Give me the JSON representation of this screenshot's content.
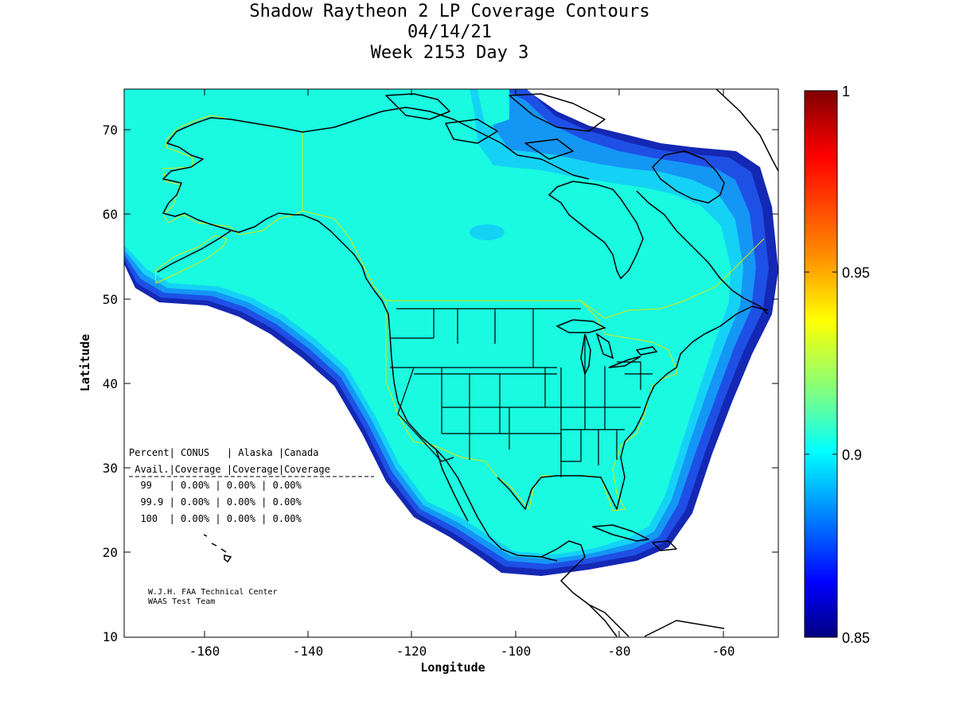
{
  "title": {
    "line1": "Shadow Raytheon 2 LP Coverage Contours",
    "line2": "04/14/21",
    "line3": "Week 2153 Day 3"
  },
  "axes": {
    "xlabel": "Longitude",
    "ylabel": "Latitude",
    "xticks": [
      "-160",
      "-140",
      "-120",
      "-100",
      "-80",
      "-60"
    ],
    "yticks": [
      "70",
      "60",
      "50",
      "40",
      "30",
      "20",
      "10"
    ]
  },
  "colorbar": {
    "labels": [
      "1",
      "0.95",
      "0.9",
      "0.85"
    ],
    "colors": {
      "top": "#800000",
      "red": "#ff0000",
      "orange": "#ff8c00",
      "yellow": "#ffff00",
      "green": "#80ff80",
      "cyan": "#00ffff",
      "blue": "#0080ff",
      "darkblue": "#0000ff",
      "bottom": "#000080"
    }
  },
  "coverage_table": {
    "header1": "Percent| CONUS   | Alaska |Canada",
    "header2": " Avail.|Coverage |Coverage|Coverage",
    "rows": [
      "  99   | 0.00% | 0.00% | 0.00%",
      "  99.9 | 0.00% | 0.00% | 0.00%",
      "  100  | 0.00% | 0.00% | 0.00%"
    ]
  },
  "credits": {
    "line1": "W.J.H. FAA Technical Center",
    "line2": "WAAS Test Team"
  },
  "map_colors": {
    "coverage_main": "#19fae0",
    "coverage_edge1": "#14d2f5",
    "coverage_edge2": "#1496f5",
    "coverage_edge3": "#1e50e6",
    "coverage_edge4": "#1428b4",
    "service_boundary": "#e6e600",
    "coastline": "#000000"
  }
}
